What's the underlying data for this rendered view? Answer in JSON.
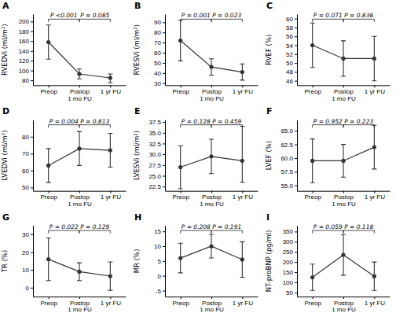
{
  "chart_data": [
    {
      "type": "line",
      "title": "A",
      "ylabel": "RVEDVi (ml/m²)",
      "annotations": [
        "P <0.001",
        "P = 0.085"
      ],
      "categories": [
        "Preop",
        "Postop\n1 mo FU",
        "1 yr FU"
      ],
      "values": [
        158,
        93,
        85
      ],
      "errors": [
        [
          35,
          35
        ],
        [
          10,
          10
        ],
        [
          10,
          8
        ]
      ],
      "color": "#333333",
      "marker": "circle",
      "ylim": [
        70,
        215
      ],
      "yticks": [
        80,
        100,
        120,
        140,
        160,
        180,
        200
      ]
    },
    {
      "type": "line",
      "title": "B",
      "ylabel": "RVESVi (ml/m²)",
      "annotations": [
        "P = 0.001",
        "P = 0.023"
      ],
      "categories": [
        "Preop",
        "Postop\n1 mo FU",
        "1 yr FU"
      ],
      "values": [
        72,
        46,
        41
      ],
      "errors": [
        [
          20,
          20
        ],
        [
          8,
          8
        ],
        [
          8,
          8
        ]
      ],
      "color": "#333333",
      "marker": "circle",
      "ylim": [
        28,
        98
      ],
      "yticks": [
        30,
        40,
        50,
        60,
        70,
        80,
        90
      ]
    },
    {
      "type": "line",
      "title": "C",
      "ylabel": "RVEF (%)",
      "annotations": [
        "P = 0.071",
        "P = 0.836"
      ],
      "categories": [
        "Preop",
        "Postop\n1 mo FU",
        "1 yr FU"
      ],
      "values": [
        54,
        51,
        51
      ],
      "errors": [
        [
          5,
          5
        ],
        [
          4,
          4
        ],
        [
          5,
          5
        ]
      ],
      "color": "#333333",
      "marker": "circle",
      "ylim": [
        45,
        61
      ],
      "yticks": [
        46,
        48,
        50,
        52,
        54,
        56,
        58,
        60
      ]
    },
    {
      "type": "line",
      "title": "D",
      "ylabel": "LVEDVi (ml/m²)",
      "annotations": [
        "P = 0.004",
        "P = 0.813"
      ],
      "categories": [
        "Preop",
        "Postop\n1 mo FU",
        "1 yr FU"
      ],
      "values": [
        63,
        73,
        72
      ],
      "errors": [
        [
          10,
          10
        ],
        [
          10,
          10
        ],
        [
          10,
          10
        ]
      ],
      "color": "#333333",
      "marker": "circle",
      "ylim": [
        48,
        90
      ],
      "yticks": [
        50,
        60,
        70,
        80
      ]
    },
    {
      "type": "line",
      "title": "E",
      "ylabel": "LVESVi (ml/m²)",
      "annotations": [
        "P = 0.128",
        "P = 0.459"
      ],
      "categories": [
        "Preop",
        "Postop\n1 mo FU",
        "1 yr FU"
      ],
      "values": [
        27,
        29.5,
        28.5
      ],
      "errors": [
        [
          5,
          5
        ],
        [
          4,
          4
        ],
        [
          5,
          8
        ]
      ],
      "color": "#333333",
      "marker": "circle",
      "ylim": [
        21.5,
        38
      ],
      "yticks": [
        22.5,
        {
          "value": 25,
          "label": "25.0"
        },
        27.5,
        {
          "value": 30,
          "label": "30.0"
        },
        32.5,
        {
          "value": 35,
          "label": "35.0"
        },
        37.5
      ]
    },
    {
      "type": "line",
      "title": "F",
      "ylabel": "LVEF (%)",
      "annotations": [
        "P = 0.952",
        "P = 0.223"
      ],
      "categories": [
        "Preop",
        "Postop\n1 mo FU",
        "1 yr FU"
      ],
      "values": [
        59.5,
        59.5,
        62
      ],
      "errors": [
        [
          4,
          4
        ],
        [
          3,
          3
        ],
        [
          4,
          4
        ]
      ],
      "color": "#333333",
      "marker": "circle",
      "ylim": [
        54,
        67
      ],
      "yticks": [
        {
          "value": 55,
          "label": "55.0"
        },
        57.5,
        {
          "value": 60,
          "label": "60.0"
        },
        62.5,
        {
          "value": 65,
          "label": "65.0"
        }
      ]
    },
    {
      "type": "line",
      "title": "G",
      "ylabel": "TR (%)",
      "annotations": [
        "P = 0.022",
        "P = 0.129"
      ],
      "categories": [
        "Preop",
        "Postop\n1 mo FU",
        "1 yr FU"
      ],
      "values": [
        16,
        9,
        6.5
      ],
      "errors": [
        [
          12,
          12
        ],
        [
          5,
          5
        ],
        [
          8,
          8
        ]
      ],
      "color": "#333333",
      "marker": "circle",
      "ylim": [
        -5,
        35
      ],
      "yticks": [
        0,
        10,
        20,
        30
      ]
    },
    {
      "type": "line",
      "title": "H",
      "ylabel": "MR (%)",
      "annotations": [
        "P = 0.208",
        "P = 0.191"
      ],
      "categories": [
        "Preop",
        "Postop\n1 mo FU",
        "1 yr FU"
      ],
      "values": [
        6,
        10,
        5.5
      ],
      "errors": [
        [
          5,
          5
        ],
        [
          4,
          4
        ],
        [
          6,
          6
        ]
      ],
      "color": "#333333",
      "marker": "circle",
      "ylim": [
        -7,
        17
      ],
      "yticks": [
        -5,
        0,
        5,
        10,
        15
      ]
    },
    {
      "type": "line",
      "title": "I",
      "ylabel": "NT-proBNP (pg/ml)",
      "annotations": [
        "P = 0.059",
        "P = 0.118"
      ],
      "categories": [
        "Preop",
        "Postop\n1 mo FU",
        "1 yr FU"
      ],
      "values": [
        125,
        235,
        130
      ],
      "errors": [
        [
          65,
          65
        ],
        [
          100,
          100
        ],
        [
          70,
          70
        ]
      ],
      "color": "#333333",
      "marker": "circle",
      "ylim": [
        30,
        380
      ],
      "yticks": [
        50,
        100,
        150,
        200,
        250,
        300,
        350
      ]
    }
  ]
}
